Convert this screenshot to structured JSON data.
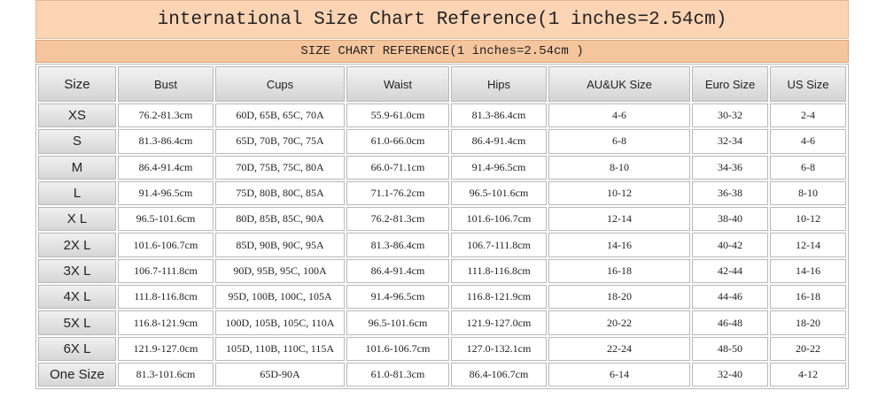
{
  "header": {
    "title": "international Size Chart Reference(1 inches=2.54cm)",
    "subtitle": "SIZE CHART REFERENCE(1 inches=2.54cm )"
  },
  "table": {
    "columns": [
      "Size",
      "Bust",
      "Cups",
      "Waist",
      "Hips",
      "AU&UK Size",
      "Euro Size",
      "US Size"
    ],
    "rows": [
      [
        "XS",
        "76.2-81.3cm",
        "60D, 65B, 65C, 70A",
        "55.9-61.0cm",
        "81.3-86.4cm",
        "4-6",
        "30-32",
        "2-4"
      ],
      [
        "S",
        "81.3-86.4cm",
        "65D, 70B, 70C, 75A",
        "61.0-66.0cm",
        "86.4-91.4cm",
        "6-8",
        "32-34",
        "4-6"
      ],
      [
        "M",
        "86.4-91.4cm",
        "70D, 75B, 75C, 80A",
        "66.0-71.1cm",
        "91.4-96.5cm",
        "8-10",
        "34-36",
        "6-8"
      ],
      [
        "L",
        "91.4-96.5cm",
        "75D, 80B, 80C, 85A",
        "71.1-76.2cm",
        "96.5-101.6cm",
        "10-12",
        "36-38",
        "8-10"
      ],
      [
        "X L",
        "96.5-101.6cm",
        "80D, 85B, 85C, 90A",
        "76.2-81.3cm",
        "101.6-106.7cm",
        "12-14",
        "38-40",
        "10-12"
      ],
      [
        "2X L",
        "101.6-106.7cm",
        "85D, 90B, 90C, 95A",
        "81.3-86.4cm",
        "106.7-111.8cm",
        "14-16",
        "40-42",
        "12-14"
      ],
      [
        "3X L",
        "106.7-111.8cm",
        "90D, 95B, 95C, 100A",
        "86.4-91.4cm",
        "111.8-116.8cm",
        "16-18",
        "42-44",
        "14-16"
      ],
      [
        "4X L",
        "111.8-116.8cm",
        "95D, 100B, 100C, 105A",
        "91.4-96.5cm",
        "116.8-121.9cm",
        "18-20",
        "44-46",
        "16-18"
      ],
      [
        "5X L",
        "116.8-121.9cm",
        "100D, 105B, 105C, 110A",
        "96.5-101.6cm",
        "121.9-127.0cm",
        "20-22",
        "46-48",
        "18-20"
      ],
      [
        "6X L",
        "121.9-127.0cm",
        "105D, 110B, 110C, 115A",
        "101.6-106.7cm",
        "127.0-132.1cm",
        "22-24",
        "48-50",
        "20-22"
      ],
      [
        "One Size",
        "81.3-101.6cm",
        "65D-90A",
        "61.0-81.3cm",
        "86.4-106.7cm",
        "6-14",
        "32-40",
        "4-12"
      ]
    ]
  }
}
